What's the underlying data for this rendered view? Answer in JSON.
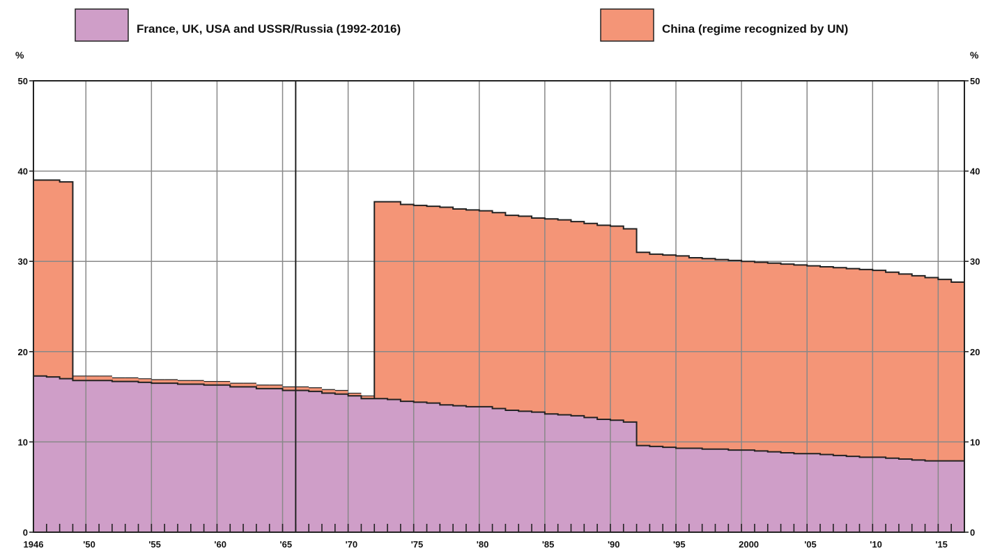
{
  "chart_data": {
    "type": "area",
    "stacked": true,
    "step": true,
    "ylabel_left": "%",
    "ylabel_right": "%",
    "ylim": [
      0,
      50
    ],
    "xlim": [
      1946,
      2017
    ],
    "yticks": [
      0,
      10,
      20,
      30,
      40,
      50
    ],
    "xticks": [
      {
        "value": 1946,
        "label": "1946"
      },
      {
        "value": 1950,
        "label": "'50"
      },
      {
        "value": 1955,
        "label": "'55"
      },
      {
        "value": 1960,
        "label": "'60"
      },
      {
        "value": 1965,
        "label": "'65"
      },
      {
        "value": 1970,
        "label": "'70"
      },
      {
        "value": 1975,
        "label": "'75"
      },
      {
        "value": 1980,
        "label": "'80"
      },
      {
        "value": 1985,
        "label": "'85"
      },
      {
        "value": 1990,
        "label": "'90"
      },
      {
        "value": 1995,
        "label": "'95"
      },
      {
        "value": 2000,
        "label": "2000"
      },
      {
        "value": 2005,
        "label": "'05"
      },
      {
        "value": 2010,
        "label": "'10"
      },
      {
        "value": 2015,
        "label": "'15"
      }
    ],
    "grid": true,
    "emphasized_vertical_line": 1966,
    "legend_position": "top",
    "colors": {
      "series_1": "#cf9ec8",
      "series_2": "#f49577",
      "outline": "#222222",
      "grid": "#888888"
    },
    "x": [
      1946,
      1947,
      1948,
      1949,
      1950,
      1951,
      1952,
      1953,
      1954,
      1955,
      1956,
      1957,
      1958,
      1959,
      1960,
      1961,
      1962,
      1963,
      1964,
      1965,
      1966,
      1967,
      1968,
      1969,
      1970,
      1971,
      1972,
      1973,
      1974,
      1975,
      1976,
      1977,
      1978,
      1979,
      1980,
      1981,
      1982,
      1983,
      1984,
      1985,
      1986,
      1987,
      1988,
      1989,
      1990,
      1991,
      1992,
      1993,
      1994,
      1995,
      1996,
      1997,
      1998,
      1999,
      2000,
      2001,
      2002,
      2003,
      2004,
      2005,
      2006,
      2007,
      2008,
      2009,
      2010,
      2011,
      2012,
      2013,
      2014,
      2015,
      2016
    ],
    "series": [
      {
        "name": "France, UK, USA and USSR/Russia (1992-2016)",
        "values": [
          17.3,
          17.2,
          17.0,
          16.8,
          16.8,
          16.8,
          16.7,
          16.7,
          16.6,
          16.5,
          16.5,
          16.4,
          16.4,
          16.3,
          16.3,
          16.1,
          16.1,
          15.9,
          15.9,
          15.7,
          15.7,
          15.6,
          15.4,
          15.3,
          15.1,
          14.8,
          14.8,
          14.7,
          14.5,
          14.4,
          14.3,
          14.1,
          14.0,
          13.9,
          13.9,
          13.7,
          13.5,
          13.4,
          13.3,
          13.1,
          13.0,
          12.9,
          12.7,
          12.5,
          12.4,
          12.2,
          9.6,
          9.5,
          9.4,
          9.3,
          9.3,
          9.2,
          9.2,
          9.1,
          9.1,
          9.0,
          8.9,
          8.8,
          8.7,
          8.7,
          8.6,
          8.5,
          8.4,
          8.3,
          8.3,
          8.2,
          8.1,
          8.0,
          7.9,
          7.9,
          7.9
        ]
      },
      {
        "name": "China (regime recognized by UN)",
        "values": [
          21.7,
          21.8,
          21.8,
          0.5,
          0.5,
          0.5,
          0.4,
          0.4,
          0.4,
          0.4,
          0.4,
          0.4,
          0.4,
          0.4,
          0.4,
          0.4,
          0.4,
          0.4,
          0.4,
          0.4,
          0.4,
          0.4,
          0.4,
          0.4,
          0.3,
          0.3,
          21.8,
          21.9,
          21.8,
          21.8,
          21.8,
          21.9,
          21.8,
          21.8,
          21.7,
          21.7,
          21.6,
          21.6,
          21.5,
          21.6,
          21.6,
          21.5,
          21.5,
          21.5,
          21.5,
          21.4,
          21.4,
          21.3,
          21.3,
          21.3,
          21.1,
          21.1,
          21.0,
          21.0,
          20.9,
          20.9,
          20.9,
          20.9,
          20.9,
          20.8,
          20.8,
          20.8,
          20.8,
          20.8,
          20.7,
          20.6,
          20.5,
          20.4,
          20.3,
          20.1,
          19.8
        ]
      }
    ]
  }
}
